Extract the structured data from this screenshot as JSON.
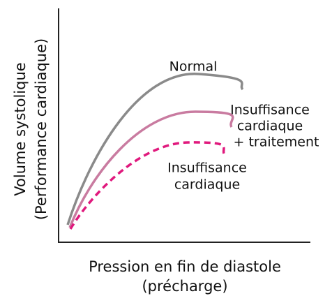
{
  "axes": {
    "y_label": [
      "Volume systolique",
      "(Performance cardiaque)"
    ],
    "x_label": [
      "Pression en fin de diastole",
      "(précharge)"
    ]
  },
  "curves": [
    {
      "label": [
        "Normal"
      ]
    },
    {
      "label": [
        "Insuffisance",
        "cardiaque",
        "+ traitement"
      ]
    },
    {
      "label": [
        "Insuffisance",
        "cardiaque"
      ]
    }
  ]
}
